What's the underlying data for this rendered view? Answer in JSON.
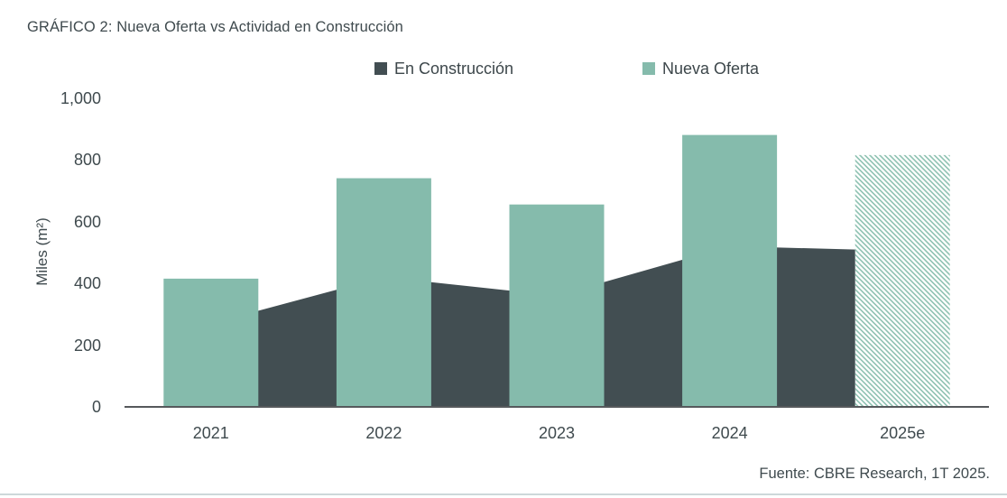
{
  "title": "GRÁFICO 2: Nueva Oferta vs Actividad en Construcción",
  "source": "Fuente: CBRE Research, 1T 2025.",
  "legend": [
    {
      "label": "En Construcción",
      "color": "#424e52"
    },
    {
      "label": "Nueva Oferta",
      "color": "#85bbac"
    }
  ],
  "colors": {
    "bar_green": "#85bbac",
    "hatch_green": "#8fc2b2",
    "area_dark": "#424e52",
    "axis_line": "#56595c",
    "text": "#3f4a4e",
    "divider": "#cdd8da"
  },
  "chart_data": {
    "type": "combo-area-bar",
    "categories": [
      "2021",
      "2022",
      "2023",
      "2024",
      "2025e"
    ],
    "series": [
      {
        "name": "En Construcción",
        "type": "area",
        "color": "#424e52",
        "values": [
          270,
          420,
          360,
          520,
          505
        ]
      },
      {
        "name": "Nueva Oferta",
        "type": "bar",
        "color": "#85bbac",
        "values": [
          415,
          740,
          655,
          880,
          815
        ],
        "hatched_categories": [
          "2025e"
        ]
      }
    ],
    "title": "GRÁFICO 2: Nueva Oferta vs Actividad en Construcción",
    "xlabel": "",
    "ylabel": "Miles (m²)",
    "ylim": [
      0,
      1000
    ],
    "yticks": [
      0,
      200,
      400,
      600,
      800,
      1000
    ],
    "ytick_labels": [
      "0",
      "200",
      "400",
      "600",
      "800",
      "1,000"
    ],
    "grid": false,
    "legend_position": "top"
  }
}
